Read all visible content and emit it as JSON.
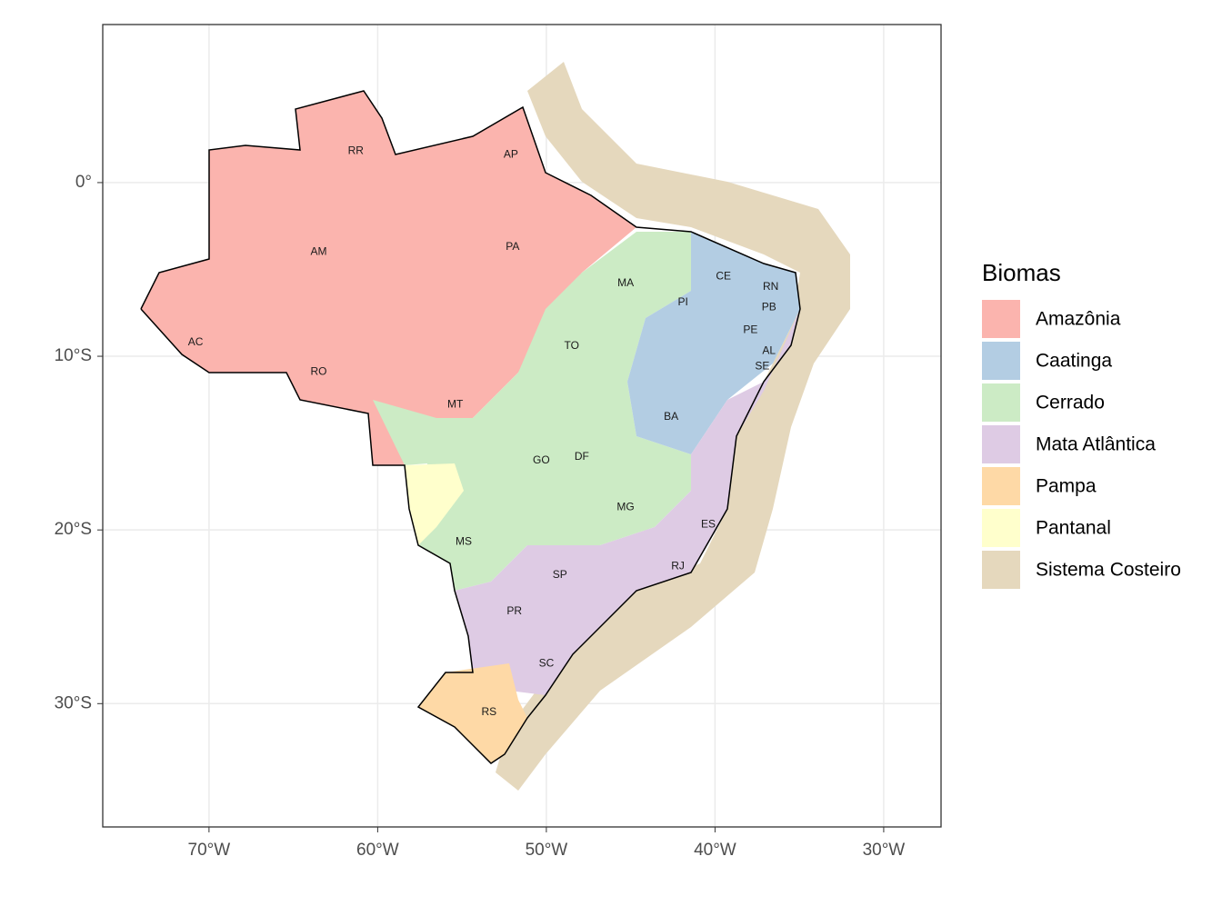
{
  "map": {
    "xlim": [
      -76.3,
      -26.6
    ],
    "ylim": [
      -37.1,
      9.1
    ],
    "xticks": [
      {
        "value": -70,
        "label": "70°W"
      },
      {
        "value": -60,
        "label": "60°W"
      },
      {
        "value": -50,
        "label": "50°W"
      },
      {
        "value": -40,
        "label": "40°W"
      },
      {
        "value": -30,
        "label": "30°W"
      }
    ],
    "yticks": [
      {
        "value": 0,
        "label": "0°"
      },
      {
        "value": -10,
        "label": "10°S"
      },
      {
        "value": -20,
        "label": "20°S"
      },
      {
        "value": -30,
        "label": "30°S"
      }
    ],
    "grid": true,
    "legend": {
      "title": "Biomas",
      "items": [
        {
          "name": "Amazônia",
          "color": "#fbb4ae"
        },
        {
          "name": "Caatinga",
          "color": "#b3cde3"
        },
        {
          "name": "Cerrado",
          "color": "#ccebc5"
        },
        {
          "name": "Mata Atlântica",
          "color": "#decbe4"
        },
        {
          "name": "Pampa",
          "color": "#fed9a6"
        },
        {
          "name": "Pantanal",
          "color": "#ffffcc"
        },
        {
          "name": "Sistema Costeiro",
          "color": "#e5d8bd"
        }
      ]
    },
    "states": [
      {
        "label": "RR",
        "lon": -61.3,
        "lat": 1.8
      },
      {
        "label": "AP",
        "lon": -52.1,
        "lat": 1.6
      },
      {
        "label": "AM",
        "lon": -63.5,
        "lat": -4.0
      },
      {
        "label": "PA",
        "lon": -52.0,
        "lat": -3.7
      },
      {
        "label": "MA",
        "lon": -45.3,
        "lat": -5.8
      },
      {
        "label": "CE",
        "lon": -39.5,
        "lat": -5.4
      },
      {
        "label": "RN",
        "lon": -36.7,
        "lat": -6.0
      },
      {
        "label": "PB",
        "lon": -36.8,
        "lat": -7.2
      },
      {
        "label": "PI",
        "lon": -41.9,
        "lat": -6.9
      },
      {
        "label": "PE",
        "lon": -37.9,
        "lat": -8.5
      },
      {
        "label": "AL",
        "lon": -36.8,
        "lat": -9.7
      },
      {
        "label": "SE",
        "lon": -37.2,
        "lat": -10.6
      },
      {
        "label": "AC",
        "lon": -70.8,
        "lat": -9.2
      },
      {
        "label": "TO",
        "lon": -48.5,
        "lat": -9.4
      },
      {
        "label": "RO",
        "lon": -63.5,
        "lat": -10.9
      },
      {
        "label": "MT",
        "lon": -55.4,
        "lat": -12.8
      },
      {
        "label": "BA",
        "lon": -42.6,
        "lat": -13.5
      },
      {
        "label": "DF",
        "lon": -47.9,
        "lat": -15.8
      },
      {
        "label": "GO",
        "lon": -50.3,
        "lat": -16.0
      },
      {
        "label": "MG",
        "lon": -45.3,
        "lat": -18.7
      },
      {
        "label": "ES",
        "lon": -40.4,
        "lat": -19.7
      },
      {
        "label": "MS",
        "lon": -54.9,
        "lat": -20.7
      },
      {
        "label": "RJ",
        "lon": -42.2,
        "lat": -22.1
      },
      {
        "label": "SP",
        "lon": -49.2,
        "lat": -22.6
      },
      {
        "label": "PR",
        "lon": -51.9,
        "lat": -24.7
      },
      {
        "label": "SC",
        "lon": -50.0,
        "lat": -27.7
      },
      {
        "label": "RS",
        "lon": -53.4,
        "lat": -30.5
      }
    ]
  }
}
